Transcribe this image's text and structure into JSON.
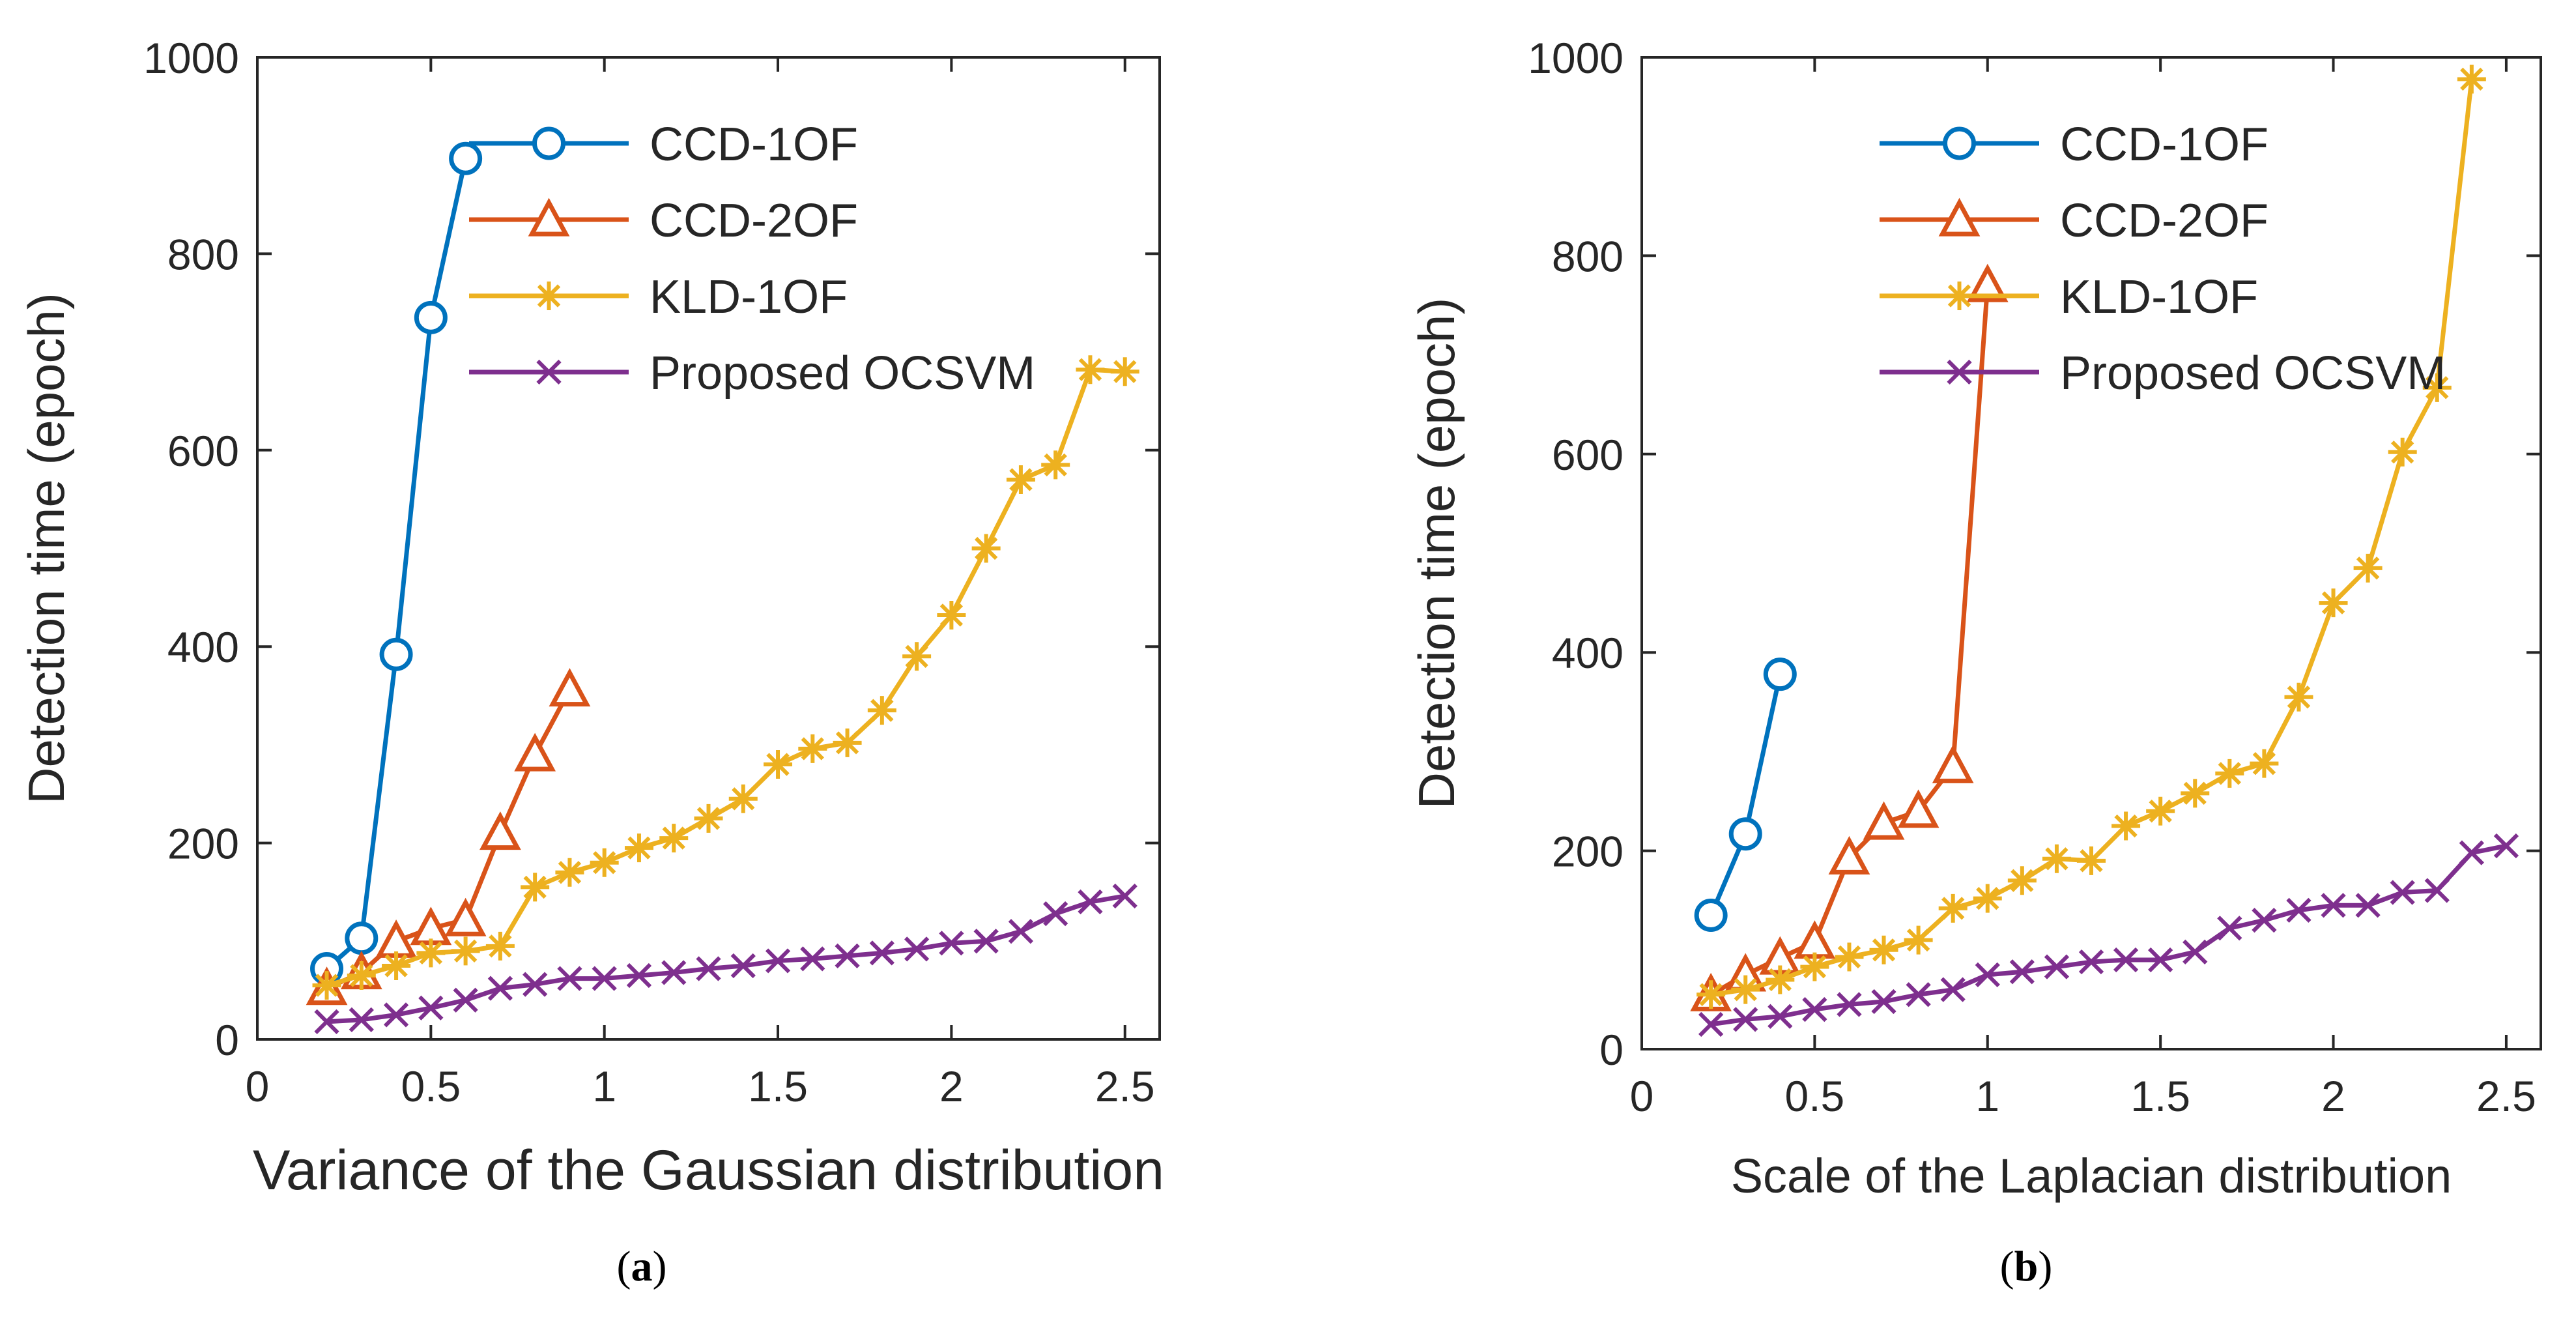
{
  "colors": {
    "blue": "#0072BD",
    "orange": "#D95319",
    "yellow": "#EDB120",
    "purple": "#7E2F8E",
    "axis": "#262626"
  },
  "panels": [
    {
      "caption": "(a)",
      "caption_letter": "a",
      "chart_data": {
        "type": "line",
        "title": "",
        "xlabel": "Variance of the Gaussian distribution",
        "ylabel": "Detection time (epoch)",
        "xlim": [
          0,
          2.6
        ],
        "ylim": [
          0,
          1000
        ],
        "xticks": [
          0,
          0.5,
          1,
          1.5,
          2,
          2.5
        ],
        "xtick_labels": [
          "0",
          "0.5",
          "1",
          "1.5",
          "2",
          "2.5"
        ],
        "yticks": [
          0,
          200,
          400,
          600,
          800,
          1000
        ],
        "ytick_labels": [
          "0",
          "200",
          "400",
          "600",
          "800",
          "1000"
        ],
        "legend_position": "top-center",
        "series": [
          {
            "name": "CCD-1OF",
            "color": "#0072BD",
            "marker": "circle",
            "x": [
              0.2,
              0.3,
              0.4,
              0.5,
              0.6
            ],
            "y": [
              72,
              103,
              392,
              735,
              897
            ]
          },
          {
            "name": "CCD-2OF",
            "color": "#D95319",
            "marker": "triangle",
            "x": [
              0.2,
              0.3,
              0.4,
              0.5,
              0.6,
              0.7,
              0.8,
              0.9
            ],
            "y": [
              52,
              68,
              100,
              113,
              122,
              210,
              290,
              356
            ]
          },
          {
            "name": "KLD-1OF",
            "color": "#EDB120",
            "marker": "asterisk",
            "x": [
              0.2,
              0.3,
              0.4,
              0.5,
              0.6,
              0.7,
              0.8,
              0.9,
              1.0,
              1.1,
              1.2,
              1.3,
              1.4,
              1.5,
              1.6,
              1.7,
              1.8,
              1.9,
              2.0,
              2.1,
              2.2,
              2.3,
              2.4,
              2.5
            ],
            "y": [
              55,
              65,
              75,
              88,
              90,
              95,
              155,
              170,
              180,
              195,
              205,
              225,
              245,
              280,
              296,
              302,
              335,
              390,
              432,
              500,
              570,
              585,
              682,
              680
            ]
          },
          {
            "name": "Proposed OCSVM",
            "color": "#7E2F8E",
            "marker": "x",
            "x": [
              0.2,
              0.3,
              0.4,
              0.5,
              0.6,
              0.7,
              0.8,
              0.9,
              1.0,
              1.1,
              1.2,
              1.3,
              1.4,
              1.5,
              1.6,
              1.7,
              1.8,
              1.9,
              2.0,
              2.1,
              2.2,
              2.3,
              2.4,
              2.5
            ],
            "y": [
              18,
              20,
              25,
              32,
              40,
              52,
              56,
              62,
              62,
              65,
              68,
              72,
              75,
              80,
              82,
              85,
              88,
              92,
              98,
              100,
              110,
              128,
              140,
              146
            ]
          }
        ]
      }
    },
    {
      "caption": "(b)",
      "caption_letter": "b",
      "chart_data": {
        "type": "line",
        "title": "",
        "xlabel": "Scale of the Laplacian distribution",
        "ylabel": "Detection time (epoch)",
        "xlim": [
          0,
          2.6
        ],
        "ylim": [
          0,
          1000
        ],
        "xticks": [
          0,
          0.5,
          1,
          1.5,
          2,
          2.5
        ],
        "xtick_labels": [
          "0",
          "0.5",
          "1",
          "1.5",
          "2",
          "2.5"
        ],
        "yticks": [
          0,
          200,
          400,
          600,
          800,
          1000
        ],
        "ytick_labels": [
          "0",
          "200",
          "400",
          "600",
          "800",
          "1000"
        ],
        "legend_position": "top-center",
        "series": [
          {
            "name": "CCD-1OF",
            "color": "#0072BD",
            "marker": "circle",
            "x": [
              0.2,
              0.3,
              0.4
            ],
            "y": [
              135,
              217,
              378
            ]
          },
          {
            "name": "CCD-2OF",
            "color": "#D95319",
            "marker": "triangle",
            "x": [
              0.2,
              0.3,
              0.4,
              0.5,
              0.6,
              0.7,
              0.8,
              0.9,
              1.0
            ],
            "y": [
              55,
              75,
              92,
              108,
              193,
              228,
              240,
              285,
              770
            ]
          },
          {
            "name": "KLD-1OF",
            "color": "#EDB120",
            "marker": "asterisk",
            "x": [
              0.2,
              0.3,
              0.4,
              0.5,
              0.6,
              0.7,
              0.8,
              0.9,
              1.0,
              1.1,
              1.2,
              1.3,
              1.4,
              1.5,
              1.6,
              1.7,
              1.8,
              1.9,
              2.0,
              2.1,
              2.2,
              2.3,
              2.4
            ],
            "y": [
              55,
              60,
              70,
              83,
              93,
              100,
              110,
              142,
              152,
              170,
              192,
              190,
              225,
              240,
              258,
              278,
              288,
              355,
              450,
              485,
              602,
              667,
              978
            ]
          },
          {
            "name": "Proposed OCSVM",
            "color": "#7E2F8E",
            "marker": "x",
            "x": [
              0.2,
              0.3,
              0.4,
              0.5,
              0.6,
              0.7,
              0.8,
              0.9,
              1.0,
              1.1,
              1.2,
              1.3,
              1.4,
              1.5,
              1.6,
              1.7,
              1.8,
              1.9,
              2.0,
              2.1,
              2.2,
              2.3,
              2.4,
              2.5
            ],
            "y": [
              25,
              30,
              33,
              40,
              45,
              48,
              55,
              60,
              75,
              78,
              83,
              88,
              90,
              90,
              98,
              122,
              130,
              140,
              145,
              145,
              158,
              160,
              198,
              205
            ]
          }
        ]
      }
    }
  ]
}
